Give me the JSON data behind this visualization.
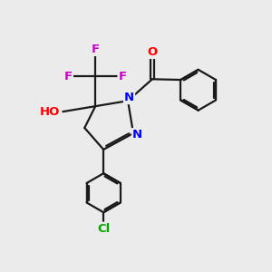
{
  "bg_color": "#ebebeb",
  "bond_color": "#1a1a1a",
  "bond_width": 1.6,
  "atom_colors": {
    "F": "#cc00cc",
    "O": "#ff0000",
    "N": "#0000ff",
    "Cl": "#00aa00",
    "C": "#1a1a1a",
    "H": "#888888"
  },
  "font_size": 9.5,
  "fig_size": [
    3.0,
    3.0
  ],
  "dpi": 100
}
